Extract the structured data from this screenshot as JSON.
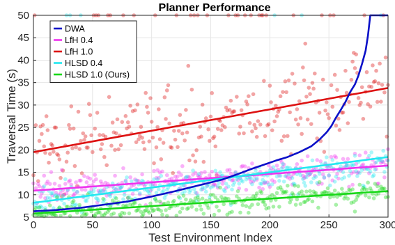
{
  "chart_data": {
    "type": "scatter",
    "title": "Planner Performance",
    "xlabel": "Test Environment Index",
    "ylabel": "Traversal Time (s)",
    "xlim": [
      0,
      300
    ],
    "ylim": [
      5,
      50
    ],
    "xticks": [
      0,
      50,
      100,
      150,
      200,
      250,
      300
    ],
    "yticks": [
      5,
      10,
      15,
      20,
      25,
      30,
      35,
      40,
      45,
      50
    ],
    "grid": true,
    "legend_position": "top-left",
    "series": [
      {
        "name": "DWA",
        "color": "#0a10c8",
        "kind": "line",
        "x": [
          0,
          20,
          40,
          60,
          80,
          100,
          120,
          140,
          160,
          175,
          185,
          195,
          205,
          215,
          225,
          235,
          242,
          248,
          252,
          256,
          260,
          264,
          268,
          272,
          275,
          278,
          281,
          283,
          285,
          288,
          300
        ],
        "y": [
          6.3,
          6.6,
          7.1,
          7.8,
          8.5,
          9.6,
          10.8,
          12.1,
          13.4,
          14.8,
          15.8,
          16.7,
          17.6,
          18.4,
          19.5,
          20.8,
          22.3,
          23.9,
          25.3,
          27.2,
          28.9,
          30.7,
          32.9,
          34.6,
          36.6,
          39.2,
          42.1,
          45.5,
          50,
          50,
          50
        ]
      },
      {
        "name": "LfH 0.4",
        "color": "#ee33ee",
        "kind": "scatter_with_fit",
        "fit": [
          10.9,
          16.5
        ],
        "center": [
          10.9,
          16.5
        ],
        "spread": 3.3
      },
      {
        "name": "LfH 1.0",
        "color": "#dd1111",
        "kind": "scatter_with_fit",
        "fit": [
          19.5,
          33.8
        ],
        "center": [
          19.5,
          33.8
        ],
        "spread": 9
      },
      {
        "name": "HLSD 0.4",
        "color": "#22e8f0",
        "kind": "scatter_with_fit",
        "fit": [
          8.2,
          18.4
        ],
        "center": [
          8.5,
          16.5
        ],
        "spread": 3.2
      },
      {
        "name": "HLSD 1.0 (Ours)",
        "color": "#18d818",
        "kind": "scatter_with_fit",
        "fit": [
          5.8,
          10.8
        ],
        "center": [
          5.8,
          10.8
        ],
        "spread": 2.4
      }
    ]
  }
}
